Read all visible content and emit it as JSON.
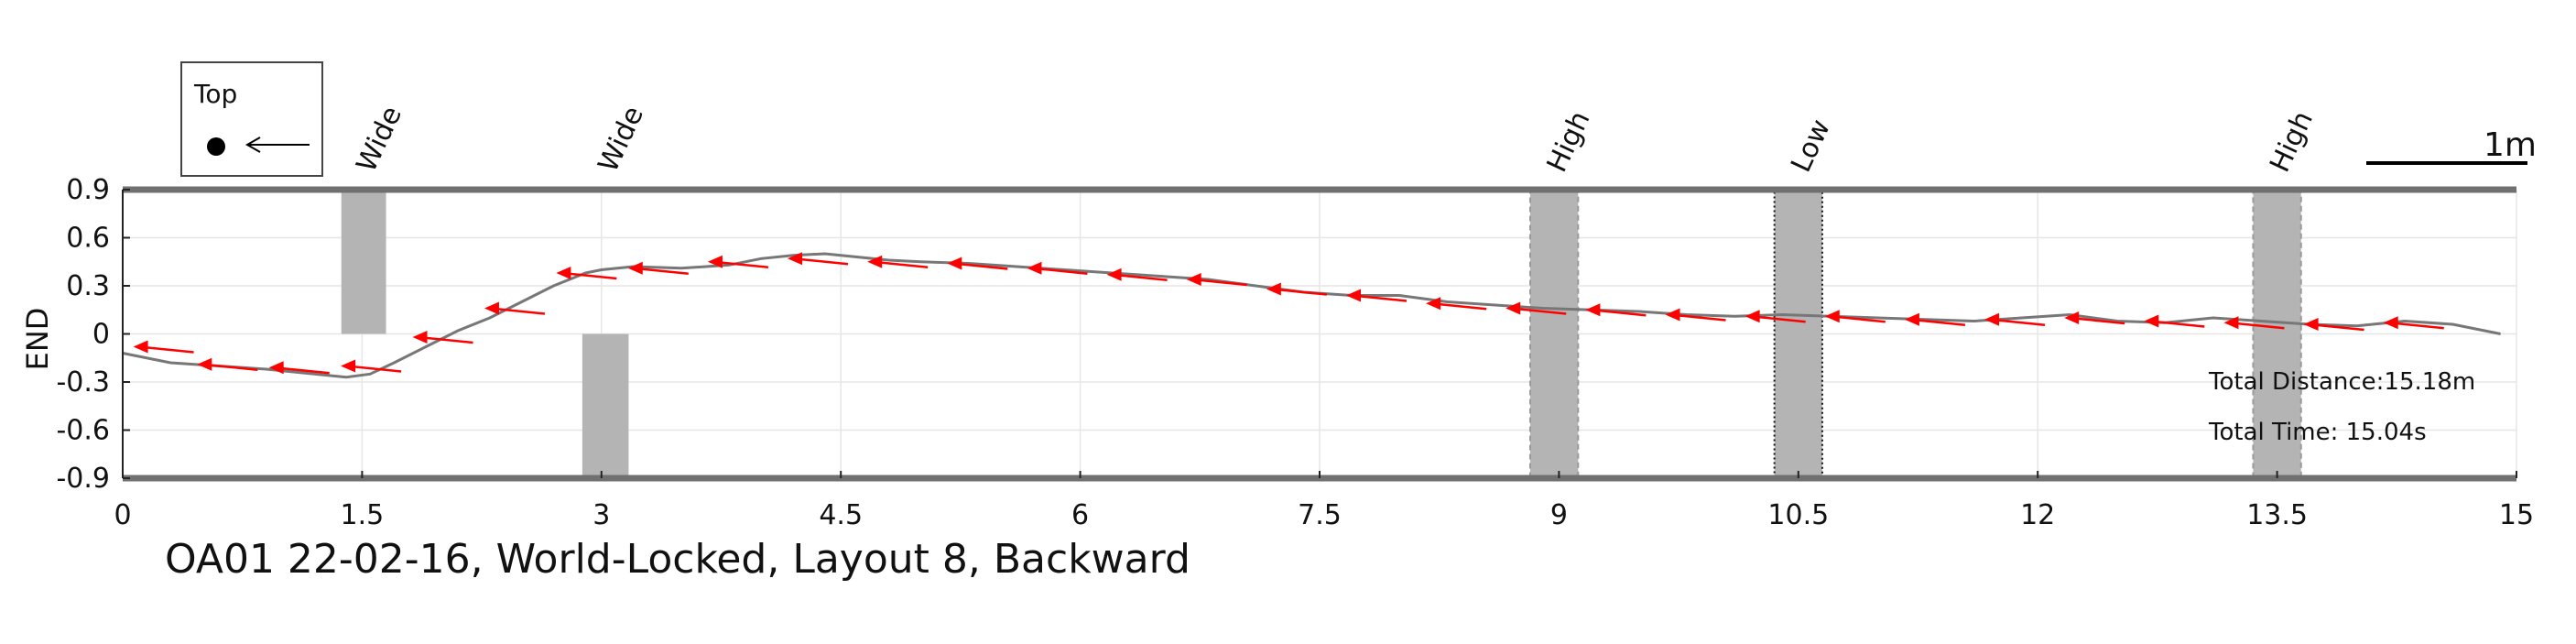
{
  "chart_data": {
    "type": "line",
    "title": "OA01 22-02-16, World-Locked, Layout 8, Backward",
    "xlabel": "",
    "ylabel": "END",
    "xlim": [
      0,
      15
    ],
    "ylim": [
      -0.9,
      0.9
    ],
    "x_ticks": [
      "0",
      "1.5",
      "3",
      "4.5",
      "6",
      "7.5",
      "9",
      "10.5",
      "12",
      "13.5",
      "15"
    ],
    "y_ticks": [
      "0.9",
      "0.6",
      "0.3",
      "0",
      "-0.3",
      "-0.6",
      "-0.9"
    ],
    "grid": true,
    "series": [
      {
        "color": "#777777",
        "x": [
          0,
          0.3,
          0.6,
          0.9,
          1.2,
          1.4,
          1.55,
          1.7,
          1.9,
          2.1,
          2.3,
          2.5,
          2.7,
          2.9,
          3.0,
          3.2,
          3.5,
          3.8,
          4.0,
          4.2,
          4.4,
          4.6,
          4.8,
          5.0,
          5.3,
          5.6,
          5.9,
          6.2,
          6.5,
          6.8,
          7.1,
          7.4,
          7.7,
          8.0,
          8.3,
          8.6,
          8.9,
          9.2,
          9.5,
          9.8,
          10.1,
          10.4,
          10.7,
          11.0,
          11.3,
          11.6,
          11.9,
          12.2,
          12.5,
          12.8,
          13.1,
          13.4,
          13.7,
          14.0,
          14.3,
          14.6,
          14.9
        ],
        "y": [
          -0.12,
          -0.18,
          -0.2,
          -0.22,
          -0.25,
          -0.27,
          -0.25,
          -0.18,
          -0.08,
          0.02,
          0.1,
          0.2,
          0.3,
          0.38,
          0.4,
          0.42,
          0.41,
          0.43,
          0.47,
          0.49,
          0.5,
          0.48,
          0.46,
          0.45,
          0.44,
          0.42,
          0.4,
          0.38,
          0.36,
          0.34,
          0.3,
          0.26,
          0.24,
          0.24,
          0.2,
          0.18,
          0.16,
          0.15,
          0.14,
          0.12,
          0.11,
          0.12,
          0.11,
          0.1,
          0.09,
          0.08,
          0.1,
          0.12,
          0.08,
          0.07,
          0.1,
          0.08,
          0.06,
          0.05,
          0.08,
          0.06,
          0.0
        ]
      }
    ],
    "arrows": [
      {
        "x": 0.25,
        "y": -0.08
      },
      {
        "x": 0.65,
        "y": -0.19
      },
      {
        "x": 1.1,
        "y": -0.21
      },
      {
        "x": 1.55,
        "y": -0.2
      },
      {
        "x": 2.0,
        "y": -0.02
      },
      {
        "x": 2.45,
        "y": 0.16
      },
      {
        "x": 2.9,
        "y": 0.38
      },
      {
        "x": 3.35,
        "y": 0.41
      },
      {
        "x": 3.85,
        "y": 0.45
      },
      {
        "x": 4.35,
        "y": 0.47
      },
      {
        "x": 4.85,
        "y": 0.45
      },
      {
        "x": 5.35,
        "y": 0.44
      },
      {
        "x": 5.85,
        "y": 0.41
      },
      {
        "x": 6.35,
        "y": 0.37
      },
      {
        "x": 6.85,
        "y": 0.34
      },
      {
        "x": 7.35,
        "y": 0.28
      },
      {
        "x": 7.85,
        "y": 0.24
      },
      {
        "x": 8.35,
        "y": 0.19
      },
      {
        "x": 8.85,
        "y": 0.16
      },
      {
        "x": 9.35,
        "y": 0.15
      },
      {
        "x": 9.85,
        "y": 0.12
      },
      {
        "x": 10.35,
        "y": 0.11
      },
      {
        "x": 10.85,
        "y": 0.11
      },
      {
        "x": 11.35,
        "y": 0.09
      },
      {
        "x": 11.85,
        "y": 0.09
      },
      {
        "x": 12.35,
        "y": 0.1
      },
      {
        "x": 12.85,
        "y": 0.08
      },
      {
        "x": 13.35,
        "y": 0.07
      },
      {
        "x": 13.85,
        "y": 0.06
      },
      {
        "x": 14.35,
        "y": 0.07
      }
    ],
    "arrow_color": "#ff0000",
    "obstacles": [
      {
        "label": "Wide",
        "x0": 1.37,
        "x1": 1.65,
        "y0": 0,
        "y1": 0.9,
        "style": "solid"
      },
      {
        "label": "Wide",
        "x0": 2.88,
        "x1": 3.17,
        "y0": -0.9,
        "y1": 0,
        "style": "solid"
      },
      {
        "label": "High",
        "x0": 8.82,
        "x1": 9.12,
        "y0": -0.9,
        "y1": 0.9,
        "style": "dashed"
      },
      {
        "label": "Low",
        "x0": 10.35,
        "x1": 10.65,
        "y0": -0.9,
        "y1": 0.9,
        "style": "dotted"
      },
      {
        "label": "High",
        "x0": 13.35,
        "x1": 13.65,
        "y0": -0.9,
        "y1": 0.9,
        "style": "dashed"
      }
    ],
    "obstacle_color": "#b4b4b4",
    "annotations": [
      "Total Distance:15.18m",
      "Total Time: 15.04s"
    ],
    "legend": {
      "label": "Top"
    },
    "scale_bar": {
      "label": "1m",
      "length": 1
    }
  }
}
